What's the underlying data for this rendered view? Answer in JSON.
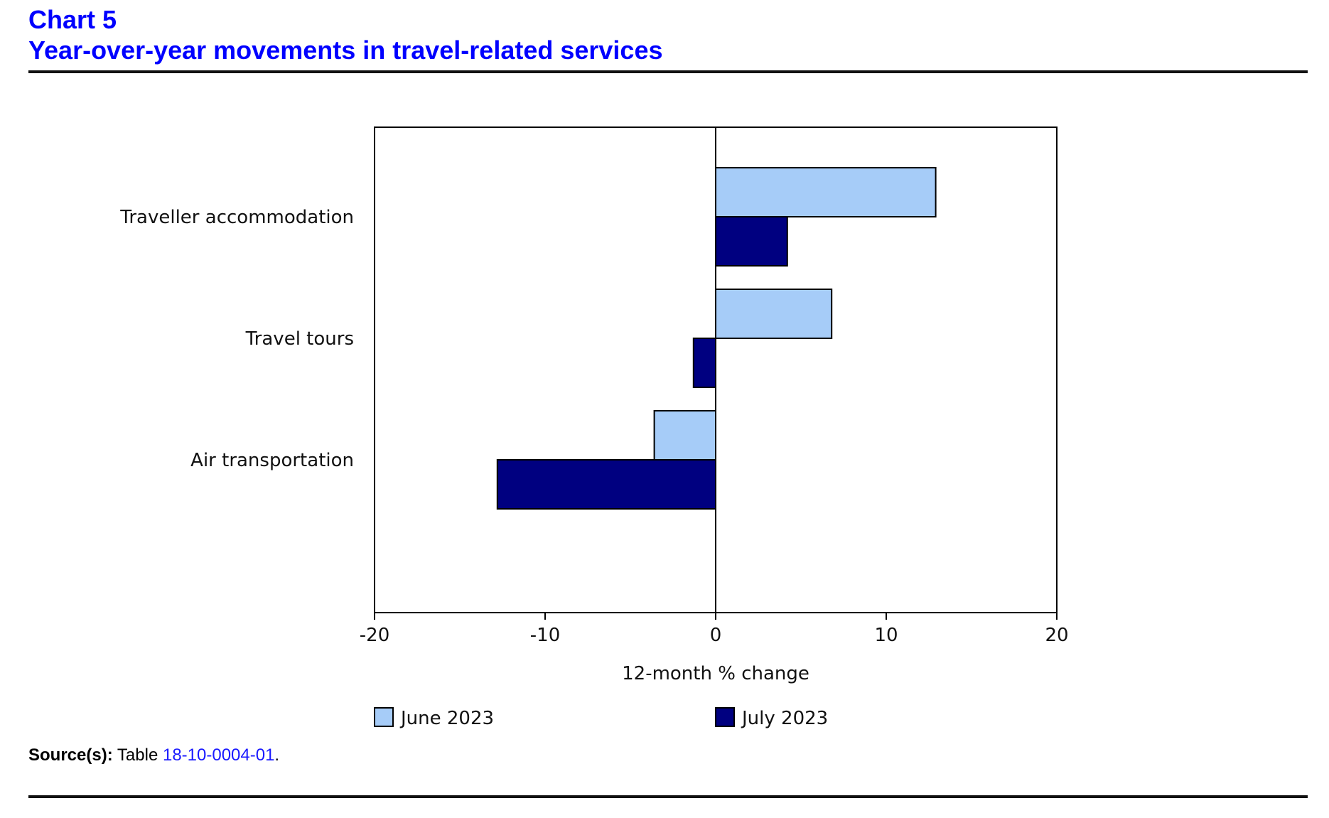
{
  "header": {
    "chart_number": "Chart 5",
    "title": "Year-over-year movements in travel-related services"
  },
  "source": {
    "label": "Source(s):",
    "text": "Table",
    "link_text": "18-10-0004-01",
    "suffix": "."
  },
  "colors": {
    "heading": "#0000ff",
    "june_fill": "#a6ccf8",
    "july_fill": "#000080",
    "link": "#1a1aff"
  },
  "chart_data": {
    "type": "bar",
    "orientation": "horizontal",
    "title": "Year-over-year movements in travel-related services",
    "xlabel": "12-month % change",
    "ylabel": "",
    "xlim": [
      -20,
      20
    ],
    "xticks": [
      "-20",
      "-10",
      "0",
      "10",
      "20"
    ],
    "grid": false,
    "legend_position": "bottom",
    "categories": [
      "Traveller accommodation",
      "Travel tours",
      "Air transportation"
    ],
    "series": [
      {
        "name": "June 2023",
        "values": [
          12.9,
          6.8,
          -3.6
        ]
      },
      {
        "name": "July 2023",
        "values": [
          4.2,
          -1.3,
          -12.8
        ]
      }
    ]
  }
}
